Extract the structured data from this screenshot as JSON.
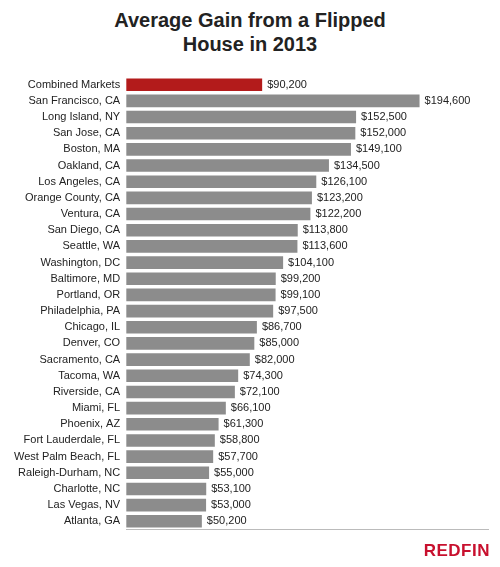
{
  "chart_data": {
    "type": "bar",
    "orientation": "horizontal",
    "title": "Average Gain from a Flipped House in 2013",
    "annotation": "REDFIN",
    "categories": [
      "Combined Markets",
      "San Francisco, CA",
      "Long Island, NY",
      "San Jose, CA",
      "Boston, MA",
      "Oakland, CA",
      "Los Angeles, CA",
      "Orange County, CA",
      "Ventura, CA",
      "San Diego, CA",
      "Seattle, WA",
      "Washington, DC",
      "Baltimore, MD",
      "Portland, OR",
      "Philadelphia, PA",
      "Chicago, IL",
      "Denver, CO",
      "Sacramento, CA",
      "Tacoma, WA",
      "Riverside, CA",
      "Miami, FL",
      "Phoenix, AZ",
      "Fort Lauderdale, FL",
      "West Palm Beach, FL",
      "Raleigh-Durham, NC",
      "Charlotte, NC",
      "Las Vegas, NV",
      "Atlanta, GA"
    ],
    "values": [
      90200,
      194600,
      152500,
      152000,
      149100,
      134500,
      126100,
      123200,
      122200,
      113800,
      113600,
      104100,
      99200,
      99100,
      97500,
      86700,
      85000,
      82000,
      74300,
      72100,
      66100,
      61300,
      58800,
      57700,
      55000,
      53100,
      53000,
      50200
    ],
    "value_labels": [
      "$90,200",
      "$194,600",
      "$152,500",
      "$152,000",
      "$149,100",
      "$134,500",
      "$126,100",
      "$123,200",
      "$122,200",
      "$113,800",
      "$113,600",
      "$104,100",
      "$99,200",
      "$99,100",
      "$97,500",
      "$86,700",
      "$85,000",
      "$82,000",
      "$74,300",
      "$72,100",
      "$66,100",
      "$61,300",
      "$58,800",
      "$57,700",
      "$55,000",
      "$53,100",
      "$53,000",
      "$50,200"
    ],
    "colors": [
      "#b31b1b",
      "#8c8c8c",
      "#8c8c8c",
      "#8c8c8c",
      "#8c8c8c",
      "#8c8c8c",
      "#8c8c8c",
      "#8c8c8c",
      "#8c8c8c",
      "#8c8c8c",
      "#8c8c8c",
      "#8c8c8c",
      "#8c8c8c",
      "#8c8c8c",
      "#8c8c8c",
      "#8c8c8c",
      "#8c8c8c",
      "#8c8c8c",
      "#8c8c8c",
      "#8c8c8c",
      "#8c8c8c",
      "#8c8c8c",
      "#8c8c8c",
      "#8c8c8c",
      "#8c8c8c",
      "#8c8c8c",
      "#8c8c8c",
      "#8c8c8c"
    ],
    "xlim": [
      0,
      240000
    ],
    "xticks": [],
    "grid": false,
    "data_labels": true,
    "tick_labels": "y"
  }
}
